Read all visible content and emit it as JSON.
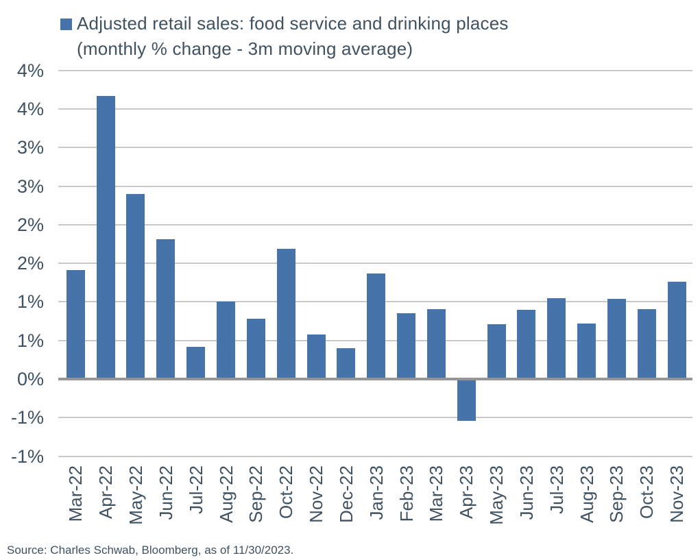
{
  "title": {
    "line1": "Adjusted retail sales: food service and drinking places",
    "line2": "(monthly % change - 3m moving average)"
  },
  "source": {
    "text": "Source: Charles Schwab, Bloomberg, as of 11/30/2023."
  },
  "colors": {
    "bar": "#4673AA",
    "text": "#3E5262",
    "gridline": "#C9C9C9",
    "zero_axis": "#969696",
    "background": "#FFFFFF"
  },
  "chart_data": {
    "type": "bar",
    "title": "Adjusted retail sales: food service and drinking places (monthly % change - 3m moving average)",
    "legend": {
      "label": "Adjusted retail sales: food service and drinking places (monthly % change - 3m moving average)",
      "position": "top-left",
      "marker_color": "#4673AA"
    },
    "xlabel": "",
    "ylabel": "",
    "grid": true,
    "ylim": [
      -1.0,
      4.0
    ],
    "ytick_step": 0.5,
    "yticks": [
      {
        "value": 4.0,
        "label": "4%"
      },
      {
        "value": 3.5,
        "label": "4%"
      },
      {
        "value": 3.0,
        "label": "3%"
      },
      {
        "value": 2.5,
        "label": "3%"
      },
      {
        "value": 2.0,
        "label": "2%"
      },
      {
        "value": 1.5,
        "label": "2%"
      },
      {
        "value": 1.0,
        "label": "1%"
      },
      {
        "value": 0.5,
        "label": "1%"
      },
      {
        "value": 0.0,
        "label": "0%"
      },
      {
        "value": -0.5,
        "label": "-1%"
      },
      {
        "value": -1.0,
        "label": "-1%"
      }
    ],
    "x_label_rotation": -90,
    "categories": [
      "Mar-22",
      "Apr-22",
      "May-22",
      "Jun-22",
      "Jul-22",
      "Aug-22",
      "Sep-22",
      "Oct-22",
      "Nov-22",
      "Dec-22",
      "Jan-23",
      "Feb-23",
      "Mar-23",
      "Apr-23",
      "May-23",
      "Jun-23",
      "Jul-23",
      "Aug-23",
      "Sep-23",
      "Oct-23",
      "Nov-23"
    ],
    "values": [
      1.41,
      3.67,
      2.4,
      1.81,
      0.42,
      1.0,
      0.78,
      1.69,
      0.58,
      0.4,
      1.37,
      0.85,
      0.91,
      -0.54,
      0.71,
      0.9,
      1.05,
      0.72,
      1.04,
      0.91,
      1.26
    ]
  }
}
